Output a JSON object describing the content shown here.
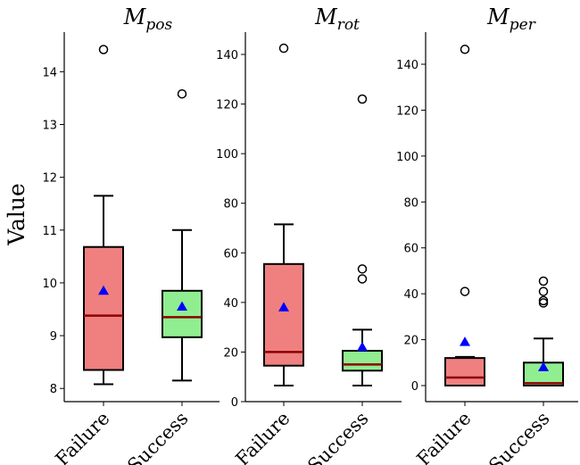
{
  "ylabel": "Value",
  "colors": {
    "failure_fill": "#f08080",
    "success_fill": "#90ee90",
    "median": "#8b0000",
    "mean_marker": "#0000ff"
  },
  "chart_data": [
    {
      "type": "box",
      "title_main": "M",
      "title_sub": "pos",
      "categories": [
        "Failure",
        "Success"
      ],
      "ylim": [
        7.75,
        14.75
      ],
      "yticks": [
        8,
        9,
        10,
        11,
        12,
        13,
        14
      ],
      "boxes": [
        {
          "name": "Failure",
          "whisker_low": 8.08,
          "q1": 8.35,
          "median": 9.38,
          "q3": 10.68,
          "whisker_high": 11.65,
          "mean": 9.85,
          "outliers": [
            14.42
          ]
        },
        {
          "name": "Success",
          "whisker_low": 8.15,
          "q1": 8.97,
          "median": 9.35,
          "q3": 9.85,
          "whisker_high": 11.0,
          "mean": 9.55,
          "outliers": [
            13.58
          ]
        }
      ]
    },
    {
      "type": "box",
      "title_main": "M",
      "title_sub": "rot",
      "categories": [
        "Failure",
        "Success"
      ],
      "ylim": [
        0,
        149
      ],
      "yticks": [
        0,
        20,
        40,
        60,
        80,
        100,
        120,
        140
      ],
      "boxes": [
        {
          "name": "Failure",
          "whisker_low": 6.5,
          "q1": 14.5,
          "median": 20,
          "q3": 55.5,
          "whisker_high": 71.5,
          "mean": 38,
          "outliers": [
            142.5
          ]
        },
        {
          "name": "Success",
          "whisker_low": 6.5,
          "q1": 12.5,
          "median": 15,
          "q3": 20.5,
          "whisker_high": 29,
          "mean": 22,
          "outliers": [
            49.5,
            53.5,
            122
          ]
        }
      ]
    },
    {
      "type": "box",
      "title_main": "M",
      "title_sub": "per",
      "categories": [
        "Failure",
        "Success"
      ],
      "ylim": [
        -7,
        154
      ],
      "yticks": [
        0,
        20,
        40,
        60,
        80,
        100,
        120,
        140
      ],
      "boxes": [
        {
          "name": "Failure",
          "whisker_low": 0,
          "q1": 0,
          "median": 3.5,
          "q3": 12,
          "whisker_high": 12.5,
          "mean": 19,
          "outliers": [
            41,
            146.5
          ]
        },
        {
          "name": "Success",
          "whisker_low": 0,
          "q1": 0,
          "median": 1,
          "q3": 10,
          "whisker_high": 20.5,
          "mean": 8,
          "outliers": [
            36,
            37,
            41,
            45.5
          ]
        }
      ]
    }
  ]
}
